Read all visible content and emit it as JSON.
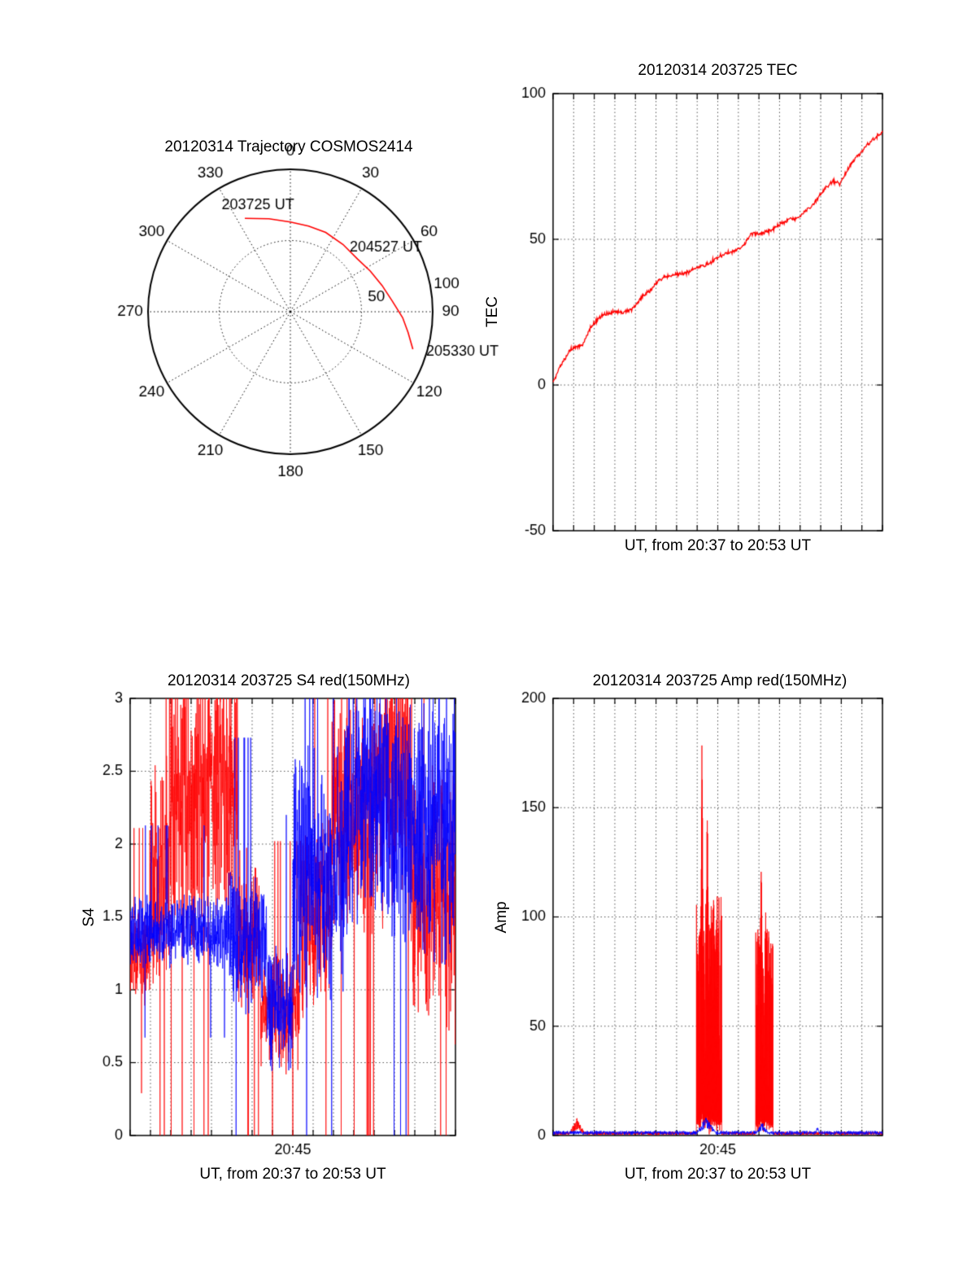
{
  "page": {
    "background": "#ffffff"
  },
  "colors": {
    "red": "#ff0000",
    "blue": "#0000ff",
    "axis": "#000000",
    "grid": "#555555"
  },
  "chart_data": [
    {
      "id": "trajectory",
      "type": "polar",
      "title": "20120314 Trajectory COSMOS2414",
      "angle_ticks": [
        0,
        30,
        60,
        90,
        120,
        150,
        180,
        210,
        240,
        270,
        300,
        330
      ],
      "radial_ticks": [
        50,
        100
      ],
      "radial_max": 100,
      "radial_label_azimuth_deg": 80,
      "annotations": [
        {
          "label": "203725 UT",
          "az_deg": -17,
          "r": 78
        },
        {
          "label": "204527 UT",
          "az_deg": 56,
          "r": 81
        },
        {
          "label": "205330 UT",
          "az_deg": 103,
          "r": 124
        }
      ],
      "trajectory": {
        "color": "#ff0000",
        "points_az_r": [
          [
            -26,
            73
          ],
          [
            -13,
            67
          ],
          [
            0,
            63
          ],
          [
            12,
            61.5
          ],
          [
            24,
            61
          ],
          [
            38,
            60
          ],
          [
            52,
            60
          ],
          [
            63,
            63
          ],
          [
            74,
            67
          ],
          [
            84,
            72
          ],
          [
            93,
            79
          ],
          [
            100,
            84
          ],
          [
            107,
            90
          ]
        ]
      }
    },
    {
      "id": "tec",
      "type": "line",
      "title": "20120314 203725 TEC",
      "ylabel": "TEC",
      "xlabel": "UT, from 20:37 to 20:53 UT",
      "ylim": [
        -50,
        100
      ],
      "yticks": [
        -50,
        0,
        50,
        100
      ],
      "x_minutes": 16,
      "xticks": [],
      "grid": "dotted",
      "series": [
        {
          "name": "TEC",
          "color": "#ff0000",
          "points": [
            [
              0,
              1
            ],
            [
              0.02,
              6
            ],
            [
              0.04,
              10
            ],
            [
              0.05,
              12
            ],
            [
              0.07,
              13
            ],
            [
              0.09,
              14
            ],
            [
              0.11,
              19
            ],
            [
              0.13,
              22
            ],
            [
              0.15,
              24
            ],
            [
              0.18,
              25
            ],
            [
              0.21,
              25
            ],
            [
              0.24,
              26
            ],
            [
              0.27,
              30
            ],
            [
              0.3,
              33
            ],
            [
              0.32,
              36
            ],
            [
              0.34,
              37
            ],
            [
              0.37,
              38
            ],
            [
              0.4,
              38
            ],
            [
              0.43,
              40
            ],
            [
              0.46,
              41
            ],
            [
              0.49,
              43
            ],
            [
              0.52,
              45
            ],
            [
              0.55,
              46
            ],
            [
              0.58,
              48
            ],
            [
              0.6,
              52
            ],
            [
              0.63,
              52
            ],
            [
              0.66,
              53
            ],
            [
              0.69,
              55
            ],
            [
              0.72,
              57
            ],
            [
              0.74,
              57
            ],
            [
              0.77,
              60
            ],
            [
              0.79,
              62
            ],
            [
              0.81,
              65
            ],
            [
              0.83,
              68
            ],
            [
              0.85,
              70
            ],
            [
              0.87,
              69
            ],
            [
              0.89,
              73
            ],
            [
              0.91,
              77
            ],
            [
              0.93,
              79
            ],
            [
              0.95,
              82
            ],
            [
              0.97,
              84
            ],
            [
              0.99,
              86
            ],
            [
              1,
              87
            ]
          ]
        }
      ]
    },
    {
      "id": "s4",
      "type": "noisy-line",
      "title": "20120314 203725 S4 red(150MHz)",
      "ylabel": "S4",
      "xlabel": "UT, from 20:37 to 20:53 UT",
      "ylim": [
        0,
        3
      ],
      "yticks": [
        0,
        0.5,
        1,
        1.5,
        2,
        2.5,
        3
      ],
      "x_minutes": 16,
      "xticks": [
        {
          "pos": 0.5,
          "label": "20:45"
        }
      ],
      "grid": "dotted",
      "series": [
        {
          "name": "red (150MHz)",
          "color": "#ff0000",
          "seed": 7,
          "segments": [
            [
              0,
              0.06,
              1.2,
              0.35
            ],
            [
              0.06,
              0.12,
              1.8,
              0.9
            ],
            [
              0.12,
              0.33,
              2.4,
              1.1
            ],
            [
              0.33,
              0.4,
              1.4,
              0.6
            ],
            [
              0.4,
              0.52,
              0.85,
              0.45
            ],
            [
              0.52,
              0.62,
              1.5,
              0.8
            ],
            [
              0.62,
              0.78,
              2.2,
              1.0
            ],
            [
              0.78,
              0.86,
              2.5,
              1.0
            ],
            [
              0.86,
              1.0,
              1.6,
              1.0
            ]
          ]
        },
        {
          "name": "blue",
          "color": "#0000ff",
          "seed": 13,
          "segments": [
            [
              0,
              0.3,
              1.4,
              0.28
            ],
            [
              0.3,
              0.42,
              1.3,
              0.55
            ],
            [
              0.42,
              0.5,
              0.9,
              0.5
            ],
            [
              0.5,
              0.66,
              1.8,
              1.0
            ],
            [
              0.66,
              0.8,
              2.3,
              1.0
            ],
            [
              0.8,
              1.0,
              2.1,
              1.1
            ]
          ]
        }
      ]
    },
    {
      "id": "amp",
      "type": "spiky-line",
      "title": "20120314 203725 Amp red(150MHz)",
      "ylabel": "Amp",
      "xlabel": "UT, from 20:37 to 20:53 UT",
      "ylim": [
        0,
        200
      ],
      "yticks": [
        0,
        50,
        100,
        150,
        200
      ],
      "x_minutes": 16,
      "xticks": [
        {
          "pos": 0.5,
          "label": "20:45"
        }
      ],
      "grid": "dotted",
      "red": {
        "name": "red (150MHz)",
        "color": "#ff0000",
        "seed": 21,
        "baseline": 1.3,
        "bumps": [
          {
            "t0": 0.045,
            "t1": 0.1,
            "peak": 8
          }
        ],
        "bursts": [
          {
            "t0": 0.435,
            "t1": 0.512,
            "body_max": 110,
            "spikes": [
              [
                0.452,
                193
              ],
              [
                0.468,
                170
              ],
              [
                0.49,
                95
              ]
            ]
          },
          {
            "t0": 0.615,
            "t1": 0.668,
            "body_max": 95,
            "spikes": [
              [
                0.632,
                143
              ],
              [
                0.645,
                110
              ]
            ]
          }
        ]
      },
      "blue": {
        "name": "blue",
        "color": "#0000ff",
        "seed": 31,
        "baseline": 1.3,
        "bumps": [
          {
            "t0": 0.43,
            "t1": 0.5,
            "peak": 9
          },
          {
            "t0": 0.61,
            "t1": 0.66,
            "peak": 6
          },
          {
            "t0": 0.795,
            "t1": 0.81,
            "peak": 5
          }
        ]
      }
    }
  ]
}
